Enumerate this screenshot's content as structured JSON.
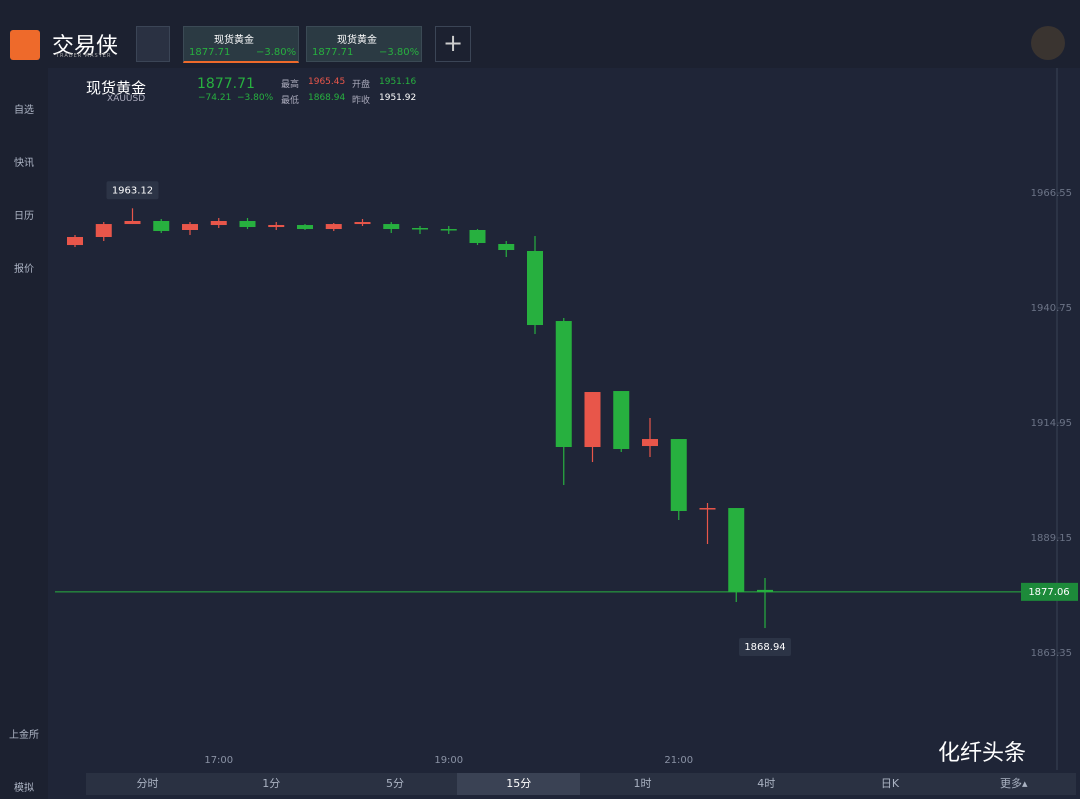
{
  "app": {
    "logo": "交易侠",
    "logo_sub": "TRADER MASTER",
    "tabs": [
      {
        "name": "现货黄金",
        "price": "1877.71",
        "change": "−3.80%"
      },
      {
        "name": "现货黄金",
        "price": "1877.71",
        "change": "−3.80%"
      }
    ],
    "header": {
      "name": "现货黄金",
      "symbol": "XAUUSD",
      "price": "1877.71",
      "change": "−74.21",
      "change_pct": "−3.80%",
      "stats": [
        {
          "label": "最高",
          "value": "1965.45"
        },
        {
          "label": "开盘",
          "value": "1951.16"
        },
        {
          "label": "最低",
          "value": "1868.94"
        },
        {
          "label": "昨收",
          "value": "1951.92"
        }
      ]
    },
    "sidebar": [
      "自选",
      "快讯",
      "日历",
      "报价"
    ],
    "sidebar_bottom": [
      "上金所",
      "模拟"
    ],
    "timeframes": [
      "分时",
      "1分",
      "5分",
      "15分",
      "1时",
      "4时",
      "日K",
      "更多▴"
    ],
    "active_timeframe": "15分",
    "watermark": "化纤头条"
  },
  "chart_data": {
    "type": "candlestick",
    "up_color": "#e8564a",
    "down_color": "#27b03f",
    "categories": [
      null,
      null,
      null,
      null,
      null,
      "17:00",
      null,
      null,
      null,
      null,
      null,
      null,
      null,
      "19:00",
      null,
      null,
      null,
      null,
      null,
      null,
      null,
      "21:00",
      null,
      null,
      null
    ],
    "open": [
      1954.88,
      1956.68,
      1959.59,
      1960.27,
      1958.25,
      1959.37,
      1960.27,
      1958.92,
      1959.37,
      1958.47,
      1959.59,
      1959.59,
      1958.7,
      1958.47,
      1958.25,
      1955.11,
      1953.54,
      1937.83,
      1909.56,
      1922.12,
      1909.78,
      1911.35,
      1895.65,
      1895.87,
      1877.5
    ],
    "high": [
      1957.13,
      1960.04,
      1963.12,
      1960.72,
      1960.04,
      1960.94,
      1960.94,
      1960.04,
      1959.59,
      1959.82,
      1960.72,
      1960.04,
      1959.15,
      1959.15,
      1958.47,
      1955.78,
      1956.9,
      1938.5,
      1921.9,
      1922.12,
      1916.07,
      1911.35,
      1897.0,
      1895.87,
      1880.17
    ],
    "low": [
      1954.43,
      1955.78,
      1959.59,
      1957.58,
      1957.13,
      1958.7,
      1958.47,
      1958.25,
      1958.25,
      1958.02,
      1959.15,
      1957.58,
      1957.35,
      1957.35,
      1954.88,
      1952.19,
      1934.91,
      1901.03,
      1906.19,
      1908.44,
      1907.32,
      1893.18,
      1887.8,
      1874.78,
      1868.94
    ],
    "close": [
      1956.68,
      1959.59,
      1960.27,
      1958.02,
      1959.59,
      1960.27,
      1958.92,
      1959.37,
      1958.47,
      1959.59,
      1960.04,
      1958.47,
      1958.47,
      1958.25,
      1955.33,
      1953.76,
      1936.93,
      1909.56,
      1921.9,
      1909.11,
      1911.35,
      1895.2,
      1895.87,
      1877.03,
      1877.06
    ],
    "ylim": [
      1837.09,
      1994.15
    ],
    "yticks": [
      1863.35,
      1889.15,
      1914.95,
      1940.75,
      1966.55
    ],
    "high_marker": 1963.12,
    "low_marker": 1868.94,
    "last_price": 1877.06
  }
}
